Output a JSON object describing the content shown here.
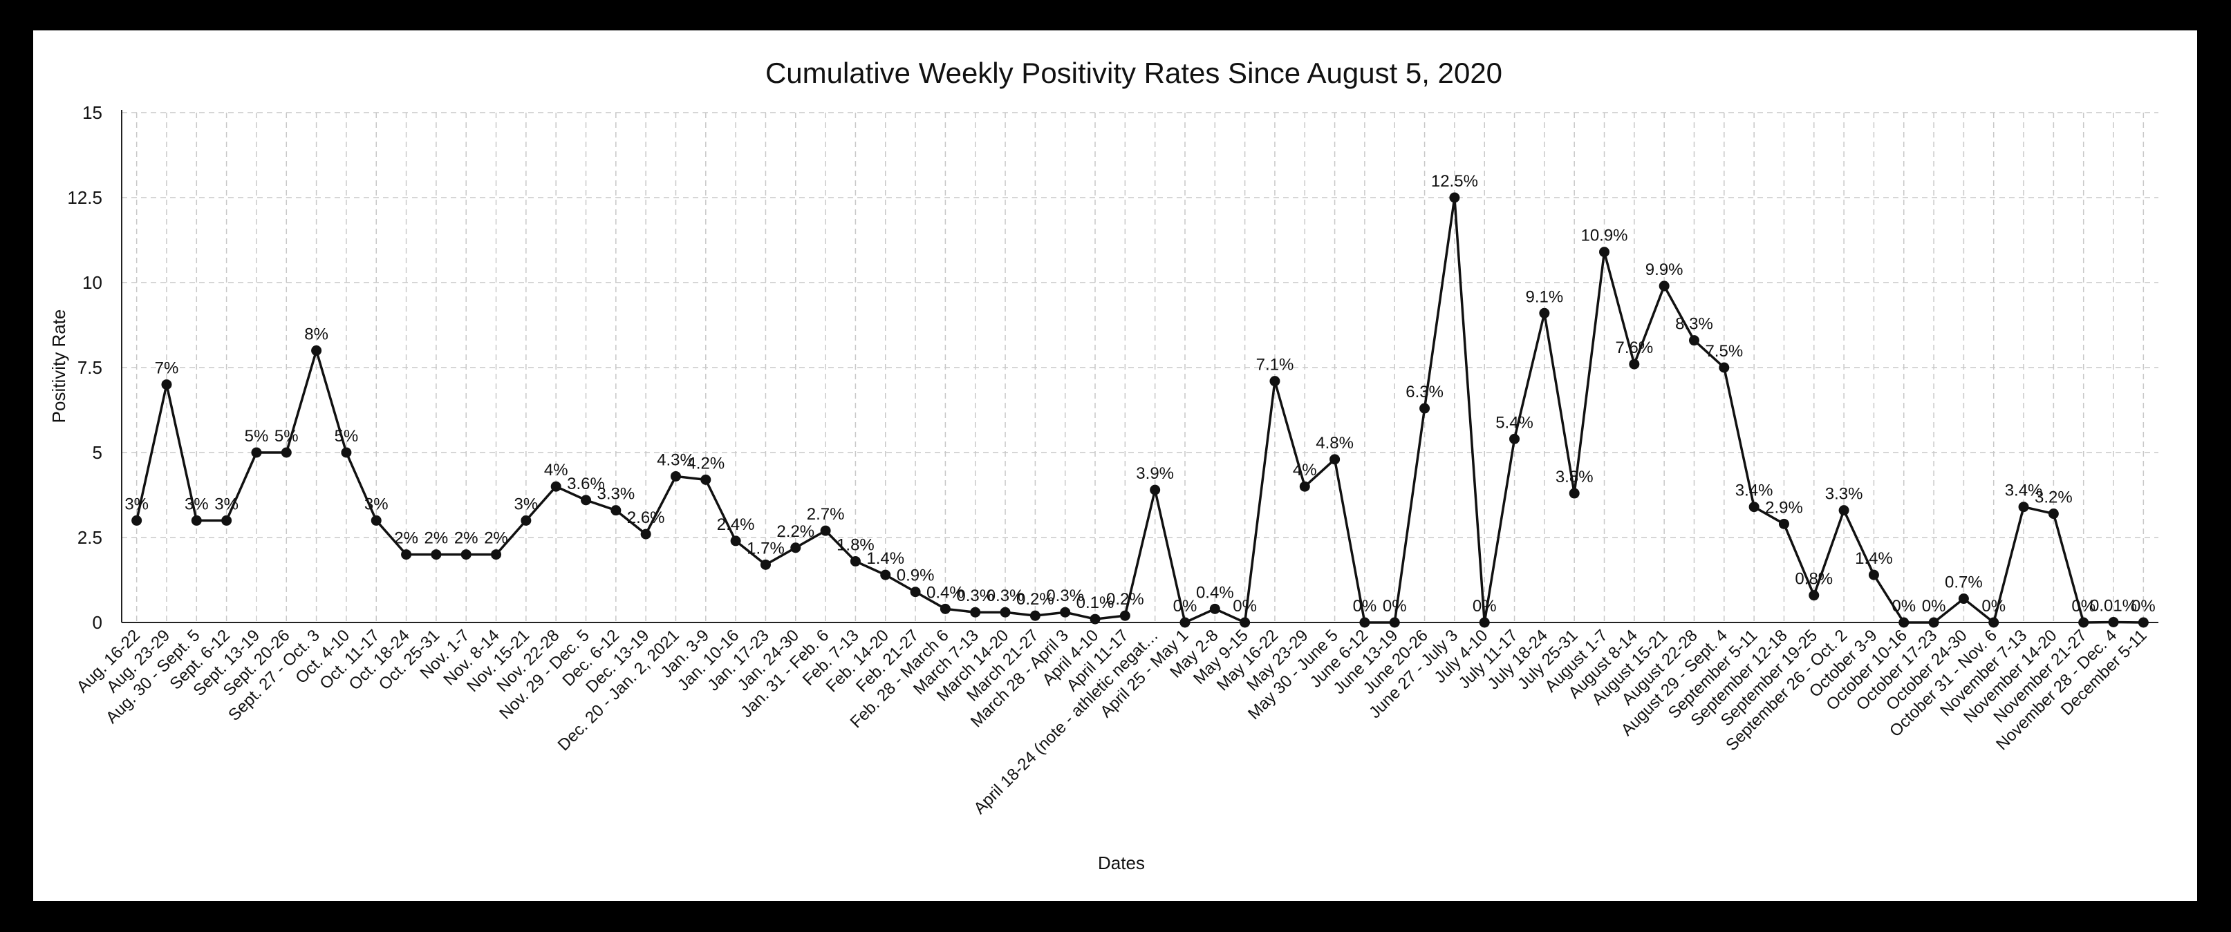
{
  "chart_data": {
    "type": "line",
    "title": "Cumulative Weekly Positivity Rates Since August 5, 2020",
    "xlabel": "Dates",
    "ylabel": "Positivity Rate",
    "ylim": [
      0,
      15
    ],
    "yticks": [
      "0",
      "2.5",
      "5",
      "7.5",
      "10",
      "12.5",
      "15"
    ],
    "grid": true,
    "categories": [
      "Aug. 16-22",
      "Aug. 23-29",
      "Aug. 30 - Sept. 5",
      "Sept. 6-12",
      "Sept. 13-19",
      "Sept. 20-26",
      "Sept. 27 - Oct. 3",
      "Oct. 4-10",
      "Oct. 11-17",
      "Oct. 18-24",
      "Oct. 25-31",
      "Nov. 1-7",
      "Nov. 8-14",
      "Nov. 15-21",
      "Nov. 22-28",
      "Nov. 29 - Dec. 5",
      "Dec. 6-12",
      "Dec. 13-19",
      "Dec. 20 - Jan. 2, 2021",
      "Jan. 3-9",
      "Jan. 10-16",
      "Jan. 17-23",
      "Jan. 24-30",
      "Jan. 31 - Feb. 6",
      "Feb. 7-13",
      "Feb. 14-20",
      "Feb. 21-27",
      "Feb. 28 - March 6",
      "March 7-13",
      "March 14-20",
      "March 21-27",
      "March 28 - April 3",
      "April 4-10",
      "April 11-17",
      "April 18-24 (note - athletic negat…",
      "April 25 - May 1",
      "May 2-8",
      "May 9-15",
      "May 16-22",
      "May 23-29",
      "May 30 - June 5",
      "June 6-12",
      "June 13-19",
      "June 20-26",
      "June 27 - July 3",
      "July 4-10",
      "July 11-17",
      "July 18-24",
      "July 25-31",
      "August 1-7",
      "August 8-14",
      "August 15-21",
      "August 22-28",
      "August 29 - Sept. 4",
      "September 5-11",
      "September 12-18",
      "September 19-25",
      "September 26 - Oct. 2",
      "October 3-9",
      "October 10-16",
      "October 17-23",
      "October 24-30",
      "October 31 - Nov. 6",
      "November 7-13",
      "November 14-20",
      "November 21-27",
      "November 28 - Dec. 4",
      "December 5-11"
    ],
    "series": [
      {
        "values": [
          3,
          7,
          3,
          3,
          5,
          5,
          8,
          5,
          3,
          2,
          2,
          2,
          2,
          3,
          4,
          3.6,
          3.3,
          2.6,
          4.3,
          4.2,
          2.4,
          1.7,
          2.2,
          2.7,
          1.8,
          1.4,
          0.9,
          0.4,
          0.3,
          0.3,
          0.2,
          0.3,
          0.1,
          0.2,
          3.9,
          0,
          0.4,
          0,
          7.1,
          4,
          4.8,
          0,
          0,
          6.3,
          12.5,
          0,
          5.4,
          9.1,
          3.8,
          10.9,
          7.6,
          9.9,
          8.3,
          7.5,
          3.4,
          2.9,
          0.8,
          3.3,
          1.4,
          0,
          0,
          0.7,
          0,
          3.4,
          3.2,
          0,
          0.01,
          0
        ],
        "labels": [
          "3%",
          "7%",
          "3%",
          "3%",
          "5%",
          "5%",
          "8%",
          "5%",
          "3%",
          "2%",
          "2%",
          "2%",
          "2%",
          "3%",
          "4%",
          "3.6%",
          "3.3%",
          "2.6%",
          "4.3%",
          "4.2%",
          "2.4%",
          "1.7%",
          "2.2%",
          "2.7%",
          "1.8%",
          "1.4%",
          "0.9%",
          "0.4%",
          "0.3%",
          "0.3%",
          "0.2%",
          "0.3%",
          "0.1%",
          "0.2%",
          "3.9%",
          "0%",
          "0.4%",
          "0%",
          "7.1%",
          "4%",
          "4.8%",
          "0%",
          "0%",
          "6.3%",
          "12.5%",
          "0%",
          "5.4%",
          "9.1%",
          "3.8%",
          "10.9%",
          "7.6%",
          "9.9%",
          "8.3%",
          "7.5%",
          "3.4%",
          "2.9%",
          "0.8%",
          "3.3%",
          "1.4%",
          "0%",
          "0%",
          "0.7%",
          "0%",
          "3.4%",
          "3.2%",
          "0%",
          "0.01%",
          "0%"
        ]
      }
    ],
    "colors": {
      "line": "#111111",
      "grid": "#c8c8c8",
      "background": "#ffffff",
      "frame": "#000000"
    }
  }
}
